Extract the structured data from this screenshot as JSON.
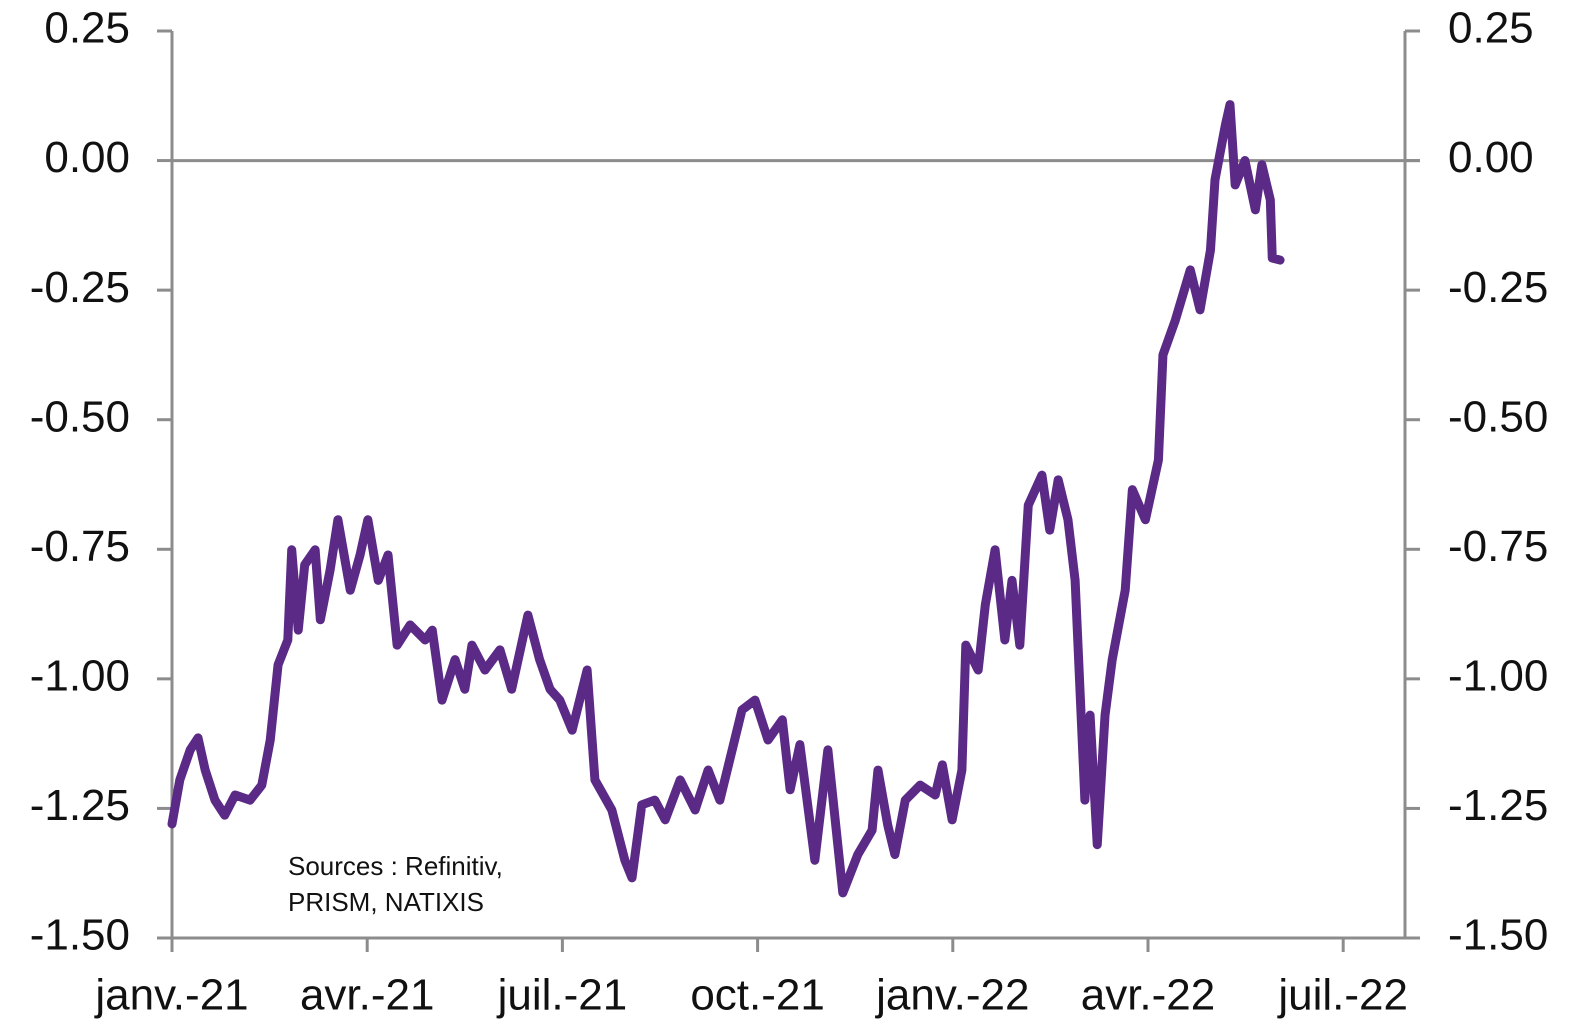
{
  "chart_data": {
    "type": "line",
    "x": [
      0,
      0.12,
      0.28,
      0.4,
      0.51,
      0.66,
      0.81,
      0.97,
      1.2,
      1.38,
      1.51,
      1.63,
      1.78,
      1.84,
      1.94,
      2.04,
      2.2,
      2.28,
      2.43,
      2.55,
      2.74,
      2.89,
      3.01,
      3.17,
      3.32,
      3.46,
      3.66,
      3.89,
      4.0,
      4.15,
      4.35,
      4.5,
      4.61,
      4.81,
      5.04,
      5.22,
      5.47,
      5.65,
      5.81,
      5.96,
      6.15,
      6.38,
      6.5,
      6.76,
      6.96,
      7.07,
      7.22,
      7.42,
      7.58,
      7.81,
      8.04,
      8.24,
      8.42,
      8.76,
      8.96,
      9.16,
      9.38,
      9.5,
      9.65,
      9.88,
      10.08,
      10.31,
      10.54,
      10.76,
      10.85,
      11.0,
      11.11,
      11.27,
      11.5,
      11.73,
      11.84,
      11.99,
      12.14,
      12.2,
      12.39,
      12.5,
      12.65,
      12.8,
      12.91,
      13.03,
      13.16,
      13.37,
      13.49,
      13.62,
      13.77,
      13.88,
      14.03,
      14.11,
      14.22,
      14.34,
      14.45,
      14.65,
      14.76,
      14.96,
      15.16,
      15.23,
      15.42,
      15.65,
      15.8,
      15.96,
      16.03,
      16.19,
      16.26,
      16.34,
      16.49,
      16.65,
      16.75,
      16.88,
      16.91,
      17.03
    ],
    "values": [
      -1.28,
      -1.195,
      -1.137,
      -1.114,
      -1.176,
      -1.234,
      -1.263,
      -1.224,
      -1.234,
      -1.205,
      -1.118,
      -0.973,
      -0.925,
      -0.751,
      -0.906,
      -0.78,
      -0.751,
      -0.886,
      -0.79,
      -0.693,
      -0.829,
      -0.761,
      -0.693,
      -0.81,
      -0.761,
      -0.935,
      -0.896,
      -0.925,
      -0.906,
      -1.041,
      -0.963,
      -1.02,
      -0.935,
      -0.983,
      -0.944,
      -1.02,
      -0.877,
      -0.963,
      -1.02,
      -1.041,
      -1.099,
      -0.983,
      -1.195,
      -1.253,
      -1.35,
      -1.384,
      -1.243,
      -1.234,
      -1.272,
      -1.195,
      -1.253,
      -1.176,
      -1.234,
      -1.06,
      -1.041,
      -1.118,
      -1.079,
      -1.214,
      -1.127,
      -1.35,
      -1.137,
      -1.413,
      -1.339,
      -1.292,
      -1.176,
      -1.282,
      -1.339,
      -1.234,
      -1.205,
      -1.224,
      -1.166,
      -1.272,
      -1.176,
      -0.935,
      -0.983,
      -0.857,
      -0.751,
      -0.925,
      -0.81,
      -0.935,
      -0.665,
      -0.607,
      -0.713,
      -0.616,
      -0.693,
      -0.81,
      -1.234,
      -1.07,
      -1.32,
      -1.07,
      -0.963,
      -0.829,
      -0.635,
      -0.693,
      -0.578,
      -0.375,
      -0.308,
      -0.211,
      -0.288,
      -0.173,
      -0.037,
      0.069,
      0.108,
      -0.047,
      0.0,
      -0.095,
      -0.008,
      -0.076,
      -0.188,
      -0.192
    ],
    "color": "#5b2a86",
    "xlim": [
      0,
      18.95
    ],
    "xticks": [
      {
        "value": 0,
        "label": "janv.-21"
      },
      {
        "value": 3,
        "label": "avr.-21"
      },
      {
        "value": 6,
        "label": "juil.-21"
      },
      {
        "value": 9,
        "label": "oct.-21"
      },
      {
        "value": 12,
        "label": "janv.-22"
      },
      {
        "value": 15,
        "label": "avr.-22"
      },
      {
        "value": 18,
        "label": "juil.-22"
      }
    ],
    "ylim": [
      -1.5,
      0.25
    ],
    "yticks": [
      {
        "value": 0.25,
        "label": "0.25"
      },
      {
        "value": 0,
        "label": "0.00"
      },
      {
        "value": -0.25,
        "label": "-0.25"
      },
      {
        "value": -0.5,
        "label": "-0.50"
      },
      {
        "value": -0.75,
        "label": "-0.75"
      },
      {
        "value": -1,
        "label": "-1.00"
      },
      {
        "value": -1.25,
        "label": "-1.25"
      },
      {
        "value": -1.5,
        "label": "-1.50"
      }
    ],
    "y2lim": [
      -1.5,
      0.25
    ],
    "y2ticks": [
      {
        "value": 0.25,
        "label": "0.25"
      },
      {
        "value": 0,
        "label": "0.00"
      },
      {
        "value": -0.25,
        "label": "-0.25"
      },
      {
        "value": -0.5,
        "label": "-0.50"
      },
      {
        "value": -0.75,
        "label": "-0.75"
      },
      {
        "value": -1,
        "label": "-1.00"
      },
      {
        "value": -1.25,
        "label": "-1.25"
      },
      {
        "value": -1.5,
        "label": "-1.50"
      }
    ],
    "hline": 0,
    "annotation": [
      "Sources : Refinitiv,",
      "PRISM, NATIXIS"
    ]
  }
}
